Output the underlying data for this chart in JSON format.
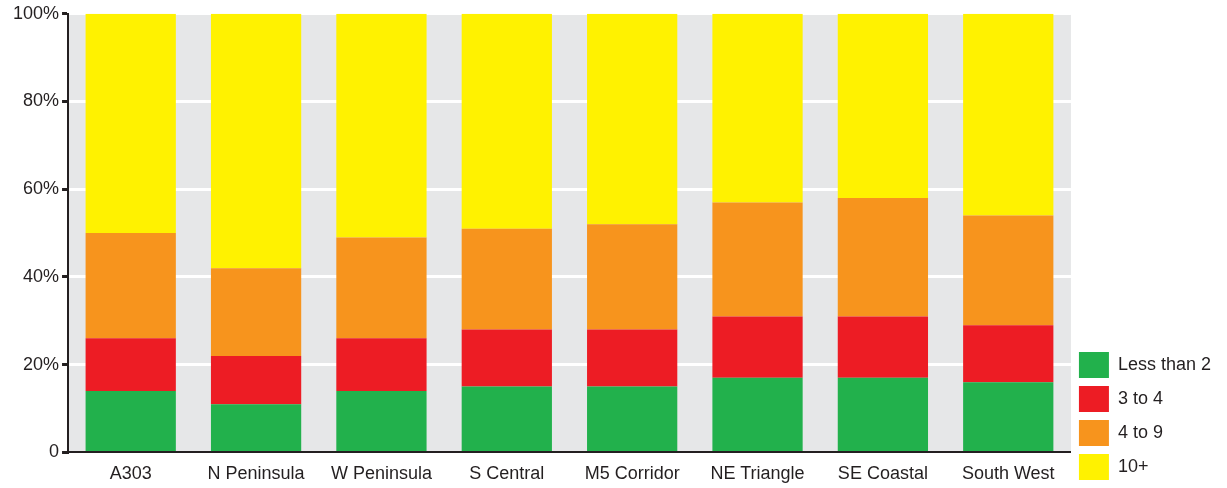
{
  "chart_data": {
    "type": "bar",
    "stacked": true,
    "categories": [
      "A303",
      "N Peninsula",
      "W Peninsula",
      "S Central",
      "M5 Corridor",
      "NE Triangle",
      "SE Coastal",
      "South West"
    ],
    "series": [
      {
        "name": "Less than 2",
        "color": "#22b14c",
        "values": [
          14,
          11,
          14,
          15,
          15,
          17,
          17,
          16
        ]
      },
      {
        "name": "3 to 4",
        "color": "#ed1c24",
        "values": [
          12,
          11,
          12,
          13,
          13,
          14,
          14,
          13
        ]
      },
      {
        "name": "4 to 9",
        "color": "#f7941d",
        "values": [
          24,
          20,
          23,
          23,
          24,
          26,
          27,
          25
        ]
      },
      {
        "name": "10+",
        "color": "#fff200",
        "values": [
          50,
          58,
          51,
          49,
          48,
          43,
          42,
          46
        ]
      }
    ],
    "ylim": [
      0,
      100
    ],
    "yticks": [
      0,
      {
        "value": 20,
        "label": "20%"
      },
      {
        "value": 40,
        "label": "40%"
      },
      {
        "value": 60,
        "label": "60%"
      },
      {
        "value": 80,
        "label": "80%"
      },
      {
        "value": 100,
        "label": "100%"
      }
    ],
    "grid": "y",
    "legend": "bottom right"
  }
}
